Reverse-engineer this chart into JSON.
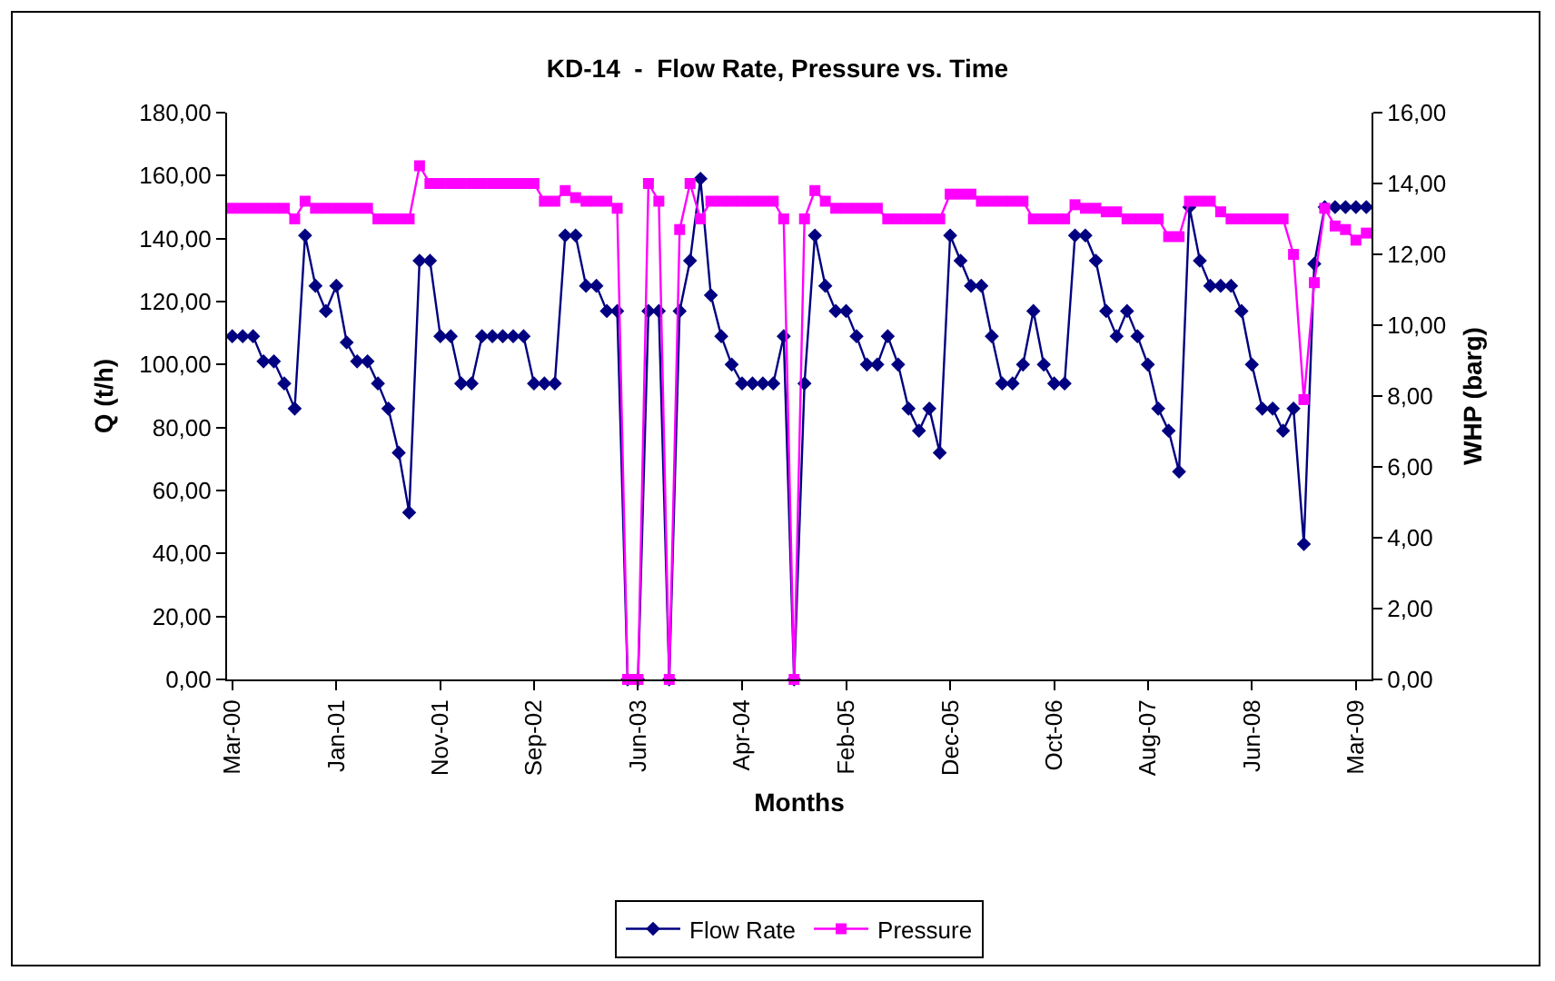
{
  "chart_data": {
    "type": "line",
    "title": "KD-14  -  Flow Rate, Pressure vs. Time",
    "xlabel": "Months",
    "ylabel": "Q (t/h)",
    "y2label": "WHP (barg)",
    "categories": [
      "Mar-00",
      null,
      null,
      null,
      null,
      null,
      null,
      null,
      null,
      null,
      "Jan-01",
      null,
      null,
      null,
      null,
      null,
      null,
      null,
      null,
      null,
      "Nov-01",
      null,
      null,
      null,
      null,
      null,
      null,
      null,
      null,
      "Sep-02",
      null,
      null,
      null,
      null,
      null,
      null,
      null,
      null,
      null,
      "Jun-03",
      null,
      null,
      null,
      null,
      null,
      null,
      null,
      null,
      null,
      "Apr-04",
      null,
      null,
      null,
      null,
      null,
      null,
      null,
      null,
      null,
      "Feb-05",
      null,
      null,
      null,
      null,
      null,
      null,
      null,
      null,
      null,
      "Dec-05",
      null,
      null,
      null,
      null,
      null,
      null,
      null,
      null,
      null,
      "Oct-06",
      null,
      null,
      null,
      null,
      null,
      null,
      null,
      null,
      "Aug-07",
      null,
      null,
      null,
      null,
      null,
      null,
      null,
      null,
      null,
      "Jun-08",
      null,
      null,
      null,
      null,
      null,
      null,
      null,
      null,
      null,
      "Mar-09",
      null
    ],
    "series": [
      {
        "name": "Flow Rate",
        "color": "#000080",
        "marker": "diamond",
        "values": [
          109,
          109,
          109,
          101,
          101,
          94,
          86,
          141,
          125,
          117,
          125,
          107,
          101,
          101,
          94,
          86,
          72,
          53,
          133,
          133,
          109,
          109,
          94,
          94,
          109,
          109,
          109,
          109,
          109,
          94,
          94,
          94,
          141,
          141,
          125,
          125,
          117,
          117,
          0,
          0,
          117,
          117,
          0,
          117,
          133,
          159,
          122,
          109,
          100,
          94,
          94,
          94,
          94,
          109,
          0,
          94,
          141,
          125,
          117,
          117,
          109,
          100,
          100,
          109,
          100,
          86,
          79,
          86,
          72,
          141,
          133,
          125,
          125,
          109,
          94,
          94,
          100,
          117,
          100,
          94,
          94,
          141,
          141,
          133,
          117,
          109,
          117,
          109,
          100,
          86,
          79,
          66,
          150,
          133,
          125,
          125,
          125,
          117,
          100,
          86,
          86,
          79,
          86,
          43,
          132,
          150,
          150,
          150,
          150,
          150
        ]
      },
      {
        "name": "Pressure",
        "color": "#ff00ff",
        "marker": "square",
        "axis": "y2",
        "values": [
          13.3,
          13.3,
          13.3,
          13.3,
          13.3,
          13.3,
          13.0,
          13.5,
          13.3,
          13.3,
          13.3,
          13.3,
          13.3,
          13.3,
          13.0,
          13.0,
          13.0,
          13.0,
          14.5,
          14.0,
          14.0,
          14.0,
          14.0,
          14.0,
          14.0,
          14.0,
          14.0,
          14.0,
          14.0,
          14.0,
          13.5,
          13.5,
          13.8,
          13.6,
          13.5,
          13.5,
          13.5,
          13.3,
          0,
          0,
          14.0,
          13.5,
          0,
          12.7,
          14.0,
          13.0,
          13.5,
          13.5,
          13.5,
          13.5,
          13.5,
          13.5,
          13.5,
          13.0,
          0,
          13.0,
          13.8,
          13.5,
          13.3,
          13.3,
          13.3,
          13.3,
          13.3,
          13.0,
          13.0,
          13.0,
          13.0,
          13.0,
          13.0,
          13.7,
          13.7,
          13.7,
          13.5,
          13.5,
          13.5,
          13.5,
          13.5,
          13.0,
          13.0,
          13.0,
          13.0,
          13.4,
          13.3,
          13.3,
          13.2,
          13.2,
          13.0,
          13.0,
          13.0,
          13.0,
          12.5,
          12.5,
          13.5,
          13.5,
          13.5,
          13.2,
          13.0,
          13.0,
          13.0,
          13.0,
          13.0,
          13.0,
          12.0,
          7.9,
          11.2,
          13.3,
          12.8,
          12.7,
          12.4,
          12.6
        ]
      }
    ],
    "ylim": [
      0,
      180
    ],
    "yticks": [
      {
        "value": 0,
        "label": "0,00"
      },
      {
        "value": 20,
        "label": "20,00"
      },
      {
        "value": 40,
        "label": "40,00"
      },
      {
        "value": 60,
        "label": "60,00"
      },
      {
        "value": 80,
        "label": "80,00"
      },
      {
        "value": 100,
        "label": "100,00"
      },
      {
        "value": 120,
        "label": "120,00"
      },
      {
        "value": 140,
        "label": "140,00"
      },
      {
        "value": 160,
        "label": "160,00"
      },
      {
        "value": 180,
        "label": "180,00"
      }
    ],
    "y2lim": [
      0,
      16
    ],
    "y2ticks": [
      {
        "value": 0,
        "label": "0,00"
      },
      {
        "value": 2,
        "label": "2,00"
      },
      {
        "value": 4,
        "label": "4,00"
      },
      {
        "value": 6,
        "label": "6,00"
      },
      {
        "value": 8,
        "label": "8,00"
      },
      {
        "value": 10,
        "label": "10,00"
      },
      {
        "value": 12,
        "label": "12,00"
      },
      {
        "value": 14,
        "label": "14,00"
      },
      {
        "value": 16,
        "label": "16,00"
      }
    ],
    "grid": false,
    "legend": "bottom",
    "line_style": "solid"
  }
}
